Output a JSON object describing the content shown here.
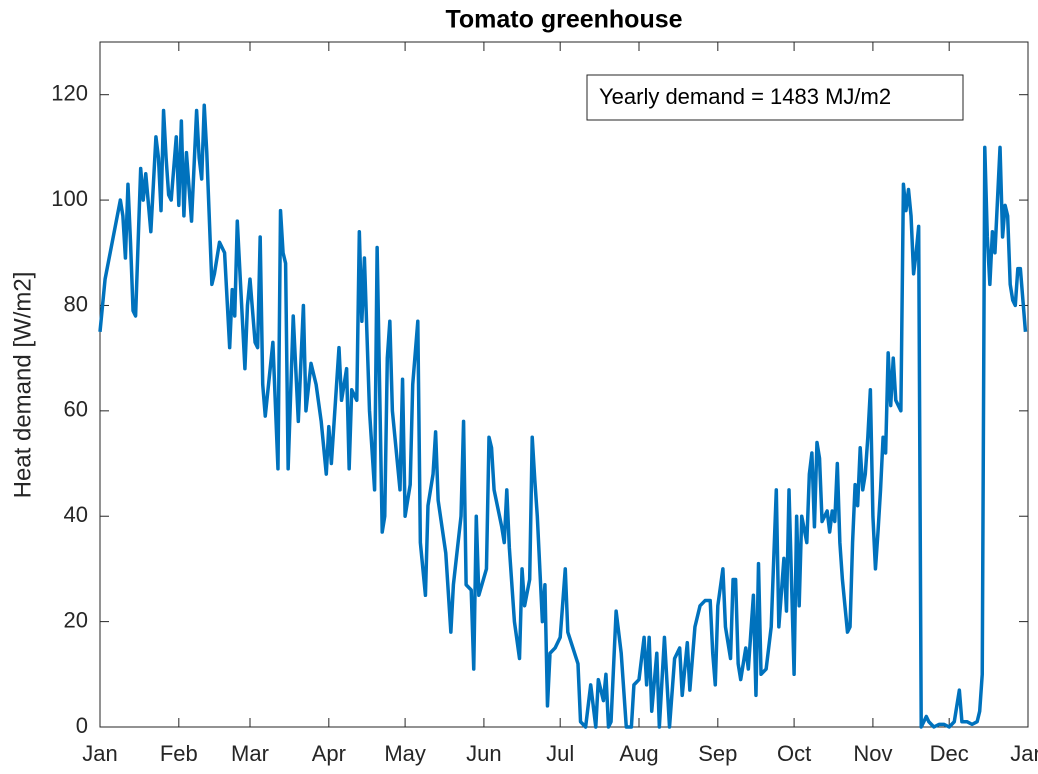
{
  "chart_data": {
    "type": "line",
    "title": "Tomato greenhouse",
    "y_label": "Heat demand [W/m2]",
    "annotation": "Yearly demand = 1483 MJ/m2",
    "xlim": [
      0,
      365
    ],
    "ylim": [
      0,
      130
    ],
    "xticks": [
      {
        "value": 0,
        "label": "Jan"
      },
      {
        "value": 31,
        "label": "Feb"
      },
      {
        "value": 59,
        "label": "Mar"
      },
      {
        "value": 90,
        "label": "Apr"
      },
      {
        "value": 120,
        "label": "May"
      },
      {
        "value": 151,
        "label": "Jun"
      },
      {
        "value": 181,
        "label": "Jul"
      },
      {
        "value": 212,
        "label": "Aug"
      },
      {
        "value": 243,
        "label": "Sep"
      },
      {
        "value": 273,
        "label": "Oct"
      },
      {
        "value": 304,
        "label": "Nov"
      },
      {
        "value": 334,
        "label": "Dec"
      },
      {
        "value": 365,
        "label": "Jan"
      }
    ],
    "yticks": [
      0,
      20,
      40,
      60,
      80,
      100,
      120
    ],
    "grid": false,
    "x": [
      0,
      2,
      4,
      6,
      8,
      9,
      10,
      11,
      12,
      13,
      14,
      16,
      17,
      18,
      20,
      22,
      23,
      24,
      25,
      26,
      27,
      28,
      30,
      31,
      32,
      33,
      34,
      36,
      38,
      39,
      40,
      41,
      42,
      44,
      45,
      47,
      49,
      51,
      52,
      53,
      54,
      57,
      58,
      59,
      61,
      62,
      63,
      64,
      65,
      68,
      70,
      71,
      72,
      73,
      74,
      76,
      78,
      80,
      81,
      83,
      85,
      87,
      89,
      90,
      91,
      94,
      95,
      97,
      98,
      99,
      101,
      102,
      103,
      104,
      106,
      108,
      109,
      111,
      112,
      113,
      114,
      115,
      118,
      119,
      120,
      122,
      123,
      125,
      126,
      128,
      129,
      131,
      132,
      133,
      136,
      138,
      139,
      142,
      143,
      144,
      146,
      147,
      148,
      149,
      152,
      153,
      154,
      155,
      158,
      159,
      160,
      161,
      163,
      165,
      166,
      167,
      169,
      170,
      171,
      172,
      174,
      175,
      176,
      177,
      179,
      181,
      183,
      184,
      186,
      188,
      189,
      191,
      193,
      195,
      196,
      198,
      199,
      200,
      201,
      203,
      205,
      207,
      209,
      210,
      212,
      214,
      215,
      216,
      217,
      219,
      220,
      222,
      224,
      226,
      228,
      229,
      231,
      232,
      234,
      236,
      238,
      240,
      241,
      242,
      243,
      245,
      246,
      248,
      249,
      250,
      251,
      252,
      254,
      255,
      257,
      258,
      259,
      260,
      262,
      264,
      266,
      267,
      269,
      270,
      271,
      273,
      274,
      275,
      276,
      278,
      279,
      280,
      281,
      282,
      283,
      284,
      286,
      287,
      288,
      289,
      290,
      291,
      292,
      294,
      295,
      296,
      297,
      298,
      299,
      300,
      301,
      302,
      303,
      304,
      305,
      306,
      307,
      308,
      309,
      310,
      311,
      312,
      313,
      315,
      316,
      317,
      318,
      319,
      320,
      321,
      322,
      323,
      324,
      325,
      326,
      328,
      330,
      332,
      334,
      336,
      338,
      339,
      341,
      343,
      345,
      346,
      347,
      348,
      349,
      350,
      351,
      352,
      353,
      354,
      355,
      356,
      357,
      358,
      359,
      360,
      361,
      362,
      364
    ],
    "series": [
      {
        "color": "#0072bd",
        "values": [
          75,
          85,
          90,
          95,
          100,
          97,
          89,
          103,
          92,
          79,
          78,
          106,
          100,
          105,
          94,
          112,
          108,
          98,
          117,
          108,
          101,
          100,
          112,
          99,
          115,
          97,
          109,
          96,
          117,
          108,
          104,
          118,
          109,
          84,
          86,
          92,
          90,
          72,
          83,
          78,
          96,
          68,
          80,
          85,
          73,
          72,
          93,
          65,
          59,
          73,
          49,
          98,
          90,
          88,
          49,
          78,
          58,
          80,
          60,
          69,
          65,
          58,
          48,
          57,
          50,
          72,
          62,
          68,
          49,
          64,
          62,
          94,
          77,
          89,
          60,
          45,
          91,
          37,
          40,
          70,
          77,
          60,
          45,
          66,
          40,
          46,
          65,
          77,
          35,
          25,
          42,
          48,
          56,
          43,
          33,
          18,
          27,
          40,
          58,
          27,
          26,
          11,
          40,
          25,
          30,
          55,
          53,
          45,
          38,
          35,
          45,
          34,
          20,
          13,
          30,
          23,
          28,
          55,
          47,
          40,
          20,
          27,
          4,
          14,
          15,
          17,
          30,
          18,
          15,
          12,
          1,
          0,
          8,
          0,
          9,
          5,
          10,
          0,
          1,
          22,
          14,
          0,
          0,
          8,
          9,
          17,
          8,
          17,
          3,
          14,
          0,
          17,
          0,
          13,
          15,
          6,
          16,
          7,
          19,
          23,
          24,
          24,
          14,
          8,
          23,
          30,
          19,
          13,
          28,
          28,
          12,
          9,
          15,
          11,
          25,
          6,
          31,
          10,
          11,
          19,
          45,
          19,
          32,
          22,
          45,
          10,
          40,
          23,
          40,
          35,
          48,
          52,
          38,
          54,
          51,
          39,
          41,
          37,
          41,
          39,
          50,
          35,
          28,
          18,
          19,
          35,
          46,
          42,
          53,
          45,
          48,
          55,
          64,
          40,
          30,
          37,
          45,
          55,
          52,
          71,
          61,
          70,
          62,
          60,
          103,
          98,
          102,
          97,
          86,
          90,
          95,
          0,
          1,
          2,
          1,
          0,
          0.5,
          0.5,
          0,
          1,
          7,
          1,
          1,
          0.5,
          1,
          3,
          10,
          110,
          93,
          84,
          94,
          90,
          100,
          110,
          93,
          99,
          97,
          84,
          81,
          80,
          87,
          87,
          75
        ]
      }
    ]
  }
}
